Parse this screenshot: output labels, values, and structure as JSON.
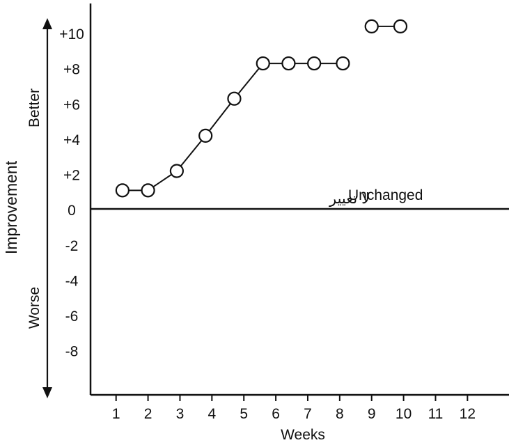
{
  "chart_data": {
    "type": "line",
    "xlabel": "Weeks",
    "ylabel": "Improvement",
    "y_side_labels": {
      "better": "Better",
      "worse": "Worse"
    },
    "baseline_label": "Unchanged",
    "baseline_label_ar": "لا تغيير",
    "x_ticks": [
      1,
      2,
      3,
      4,
      5,
      6,
      7,
      8,
      9,
      10,
      11,
      12
    ],
    "y_ticks": [
      "+10",
      "+8",
      "+6",
      "+4",
      "+2",
      "0",
      "-2",
      "-4",
      "-6",
      "-8"
    ],
    "xlim": [
      0.2,
      13.3
    ],
    "ylim": [
      -10.5,
      11.7
    ],
    "series": [
      {
        "x": [
          1.2,
          2.0,
          2.9,
          3.8,
          4.7,
          5.6,
          6.4,
          7.2,
          8.1,
          9.0,
          9.9
        ],
        "y": [
          1.1,
          1.1,
          2.2,
          4.2,
          6.3,
          8.3,
          8.3,
          8.3,
          8.3,
          10.4,
          10.4
        ],
        "gaps_after_index": [
          8
        ]
      }
    ],
    "grid": false,
    "legend": "none"
  }
}
